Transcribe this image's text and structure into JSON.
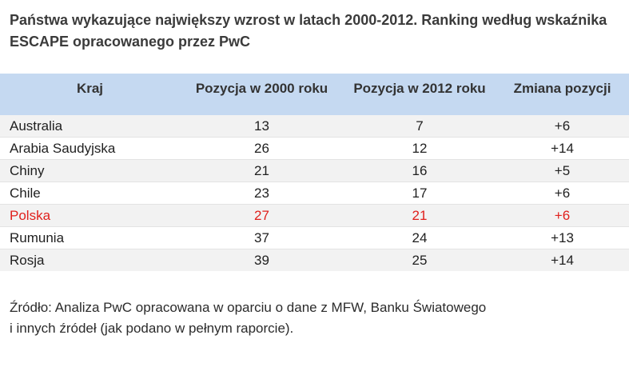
{
  "chart_data": {
    "type": "table",
    "title": "Państwa wykazujące największy wzrost w latach 2000-2012. Ranking według wskaźnika ESCAPE opracowanego przez PwC",
    "columns": [
      "Kraj",
      "Pozycja w 2000 roku",
      "Pozycja w 2012 roku",
      "Zmiana pozycji"
    ],
    "rows": [
      {
        "country": "Australia",
        "pos2000": "13",
        "pos2012": "7",
        "change": "+6",
        "highlight": false
      },
      {
        "country": "Arabia Saudyjska",
        "pos2000": "26",
        "pos2012": "12",
        "change": "+14",
        "highlight": false
      },
      {
        "country": "Chiny",
        "pos2000": "21",
        "pos2012": "16",
        "change": "+5",
        "highlight": false
      },
      {
        "country": "Chile",
        "pos2000": "23",
        "pos2012": "17",
        "change": "+6",
        "highlight": false
      },
      {
        "country": "Polska",
        "pos2000": "27",
        "pos2012": "21",
        "change": "+6",
        "highlight": true
      },
      {
        "country": "Rumunia",
        "pos2000": "37",
        "pos2012": "24",
        "change": "+13",
        "highlight": false
      },
      {
        "country": "Rosja",
        "pos2000": "39",
        "pos2012": "25",
        "change": "+14",
        "highlight": false
      }
    ],
    "source_line1": "Źródło: Analiza PwC opracowana w oparciu o dane z MFW, Banku Światowego",
    "source_line2": "i innych źródeł (jak podano w pełnym raporcie).",
    "highlight_color": "#e0201c",
    "header_color": "#c5d9f1"
  }
}
